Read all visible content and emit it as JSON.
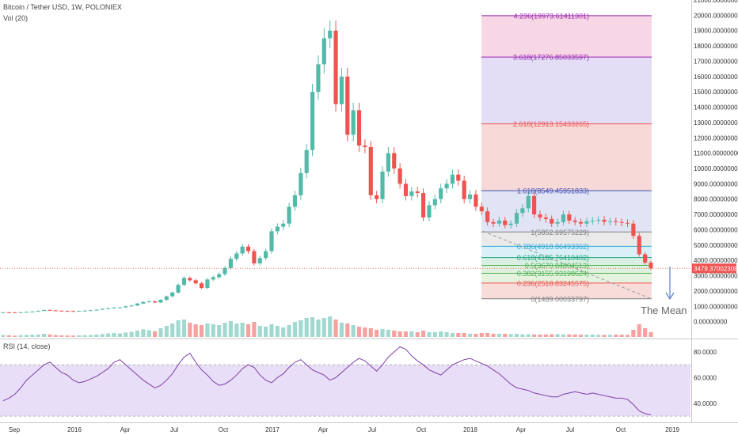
{
  "header": {
    "title": "Bitcoin / Tether USD, 1W, POLONIEX",
    "volume_label": "Vol (20)",
    "rsi_label": "RSI (14, close)"
  },
  "annotation": {
    "text": "The Mean"
  },
  "colors": {
    "up": "#53b9a9",
    "down": "#ef5350",
    "rsi_line": "#7b3fa8",
    "rsi_band": "#e9def7",
    "price_line": "#ef5350",
    "fib_line": "#5b7fbf"
  },
  "chart_data": [
    {
      "type": "candlestick",
      "title": "Bitcoin / Tether USD, 1W, POLONIEX",
      "y_axis_ticks": [
        "21000.00000000",
        "20000.00000000",
        "19000.00000000",
        "18000.00000000",
        "17000.00000000",
        "16000.00000000",
        "15000.00000000",
        "14000.00000000",
        "13000.00000000",
        "12000.00000000",
        "11000.00000000",
        "10000.00000000",
        "9000.00000000",
        "8000.00000000",
        "7000.00000000",
        "6000.00000000",
        "5000.00000000",
        "4000.00000000",
        "3000.00000000",
        "2000.00000000",
        "1000.00000000",
        "0.00000000"
      ],
      "ylim": [
        -1000,
        21000
      ],
      "x_axis_ticks": [
        "Sep",
        "2016",
        "Apr",
        "Jul",
        "Oct",
        "2017",
        "Apr",
        "Jul",
        "Oct",
        "2018",
        "Apr",
        "Jul",
        "Oct",
        "2019"
      ],
      "last_price": "3479.37002308",
      "closes": [
        610,
        605,
        600,
        615,
        640,
        660,
        700,
        760,
        730,
        710,
        700,
        690,
        680,
        700,
        720,
        740,
        780,
        830,
        880,
        920,
        930,
        1000,
        1050,
        1180,
        1280,
        1320,
        1250,
        1420,
        1650,
        1900,
        2400,
        2850,
        2700,
        2500,
        2200,
        2750,
        2900,
        3100,
        3500,
        4100,
        4450,
        4900,
        4600,
        3800,
        4150,
        4600,
        5900,
        6200,
        6400,
        7500,
        8250,
        9700,
        11200,
        15000,
        16800,
        18500,
        19000,
        14200,
        16000,
        12200,
        13800,
        11500,
        11400,
        8250,
        8000,
        9800,
        11000,
        10000,
        9000,
        8200,
        8500,
        8400,
        6800,
        7600,
        8000,
        8700,
        9000,
        9600,
        9200,
        8000,
        8300,
        7500,
        7200,
        6500,
        6400,
        6600,
        6300,
        6400,
        7100,
        7400,
        8200,
        7000,
        6800,
        6700,
        6400,
        6500,
        7000,
        6600,
        6500,
        6400,
        6550,
        6600,
        6650,
        6520,
        6560,
        6500,
        6450,
        6400,
        5600,
        4400,
        3850,
        3479
      ],
      "fib_levels": [
        {
          "label": "4.236(19973.61411301)",
          "price": 19973.61411301,
          "color": "#9c27b0",
          "fill": "#f6cfe2"
        },
        {
          "label": "3.618(17276.85033597)",
          "price": 17276.85033597,
          "color": "#9c27b0",
          "fill": "#ded7f5"
        },
        {
          "label": "2.618(12913.15433265)",
          "price": 12913.15433265,
          "color": "#ef5350",
          "fill": "#f6d3d0"
        },
        {
          "label": "1.618(8549.45951833)",
          "price": 8549.45951833,
          "color": "#3f51b5",
          "fill": "#dcdff3"
        },
        {
          "label": "1(5852.69575229)",
          "price": 5852.69575229,
          "color": "#808080",
          "fill": "#e6e6e6"
        },
        {
          "label": "0.786(4918.86493362)",
          "price": 4918.86493362,
          "color": "#26a6d6",
          "fill": "#d4ecf4"
        },
        {
          "label": "0.618(4185.76410402)",
          "price": 4185.76410402,
          "color": "#1aa37a",
          "fill": "#d2ecdf"
        },
        {
          "label": "0.5(3670.84804513)",
          "price": 3670.84804513,
          "color": "#4caf50",
          "fill": "#d8efd8"
        },
        {
          "label": "0.382(3155.93198624)",
          "price": 3155.93198624,
          "color": "#4caf50",
          "fill": "#dff0d8"
        },
        {
          "label": "0.236(2518.83245575)",
          "price": 2518.83245575,
          "color": "#ef5350",
          "fill": "#f6d6d4"
        },
        {
          "label": "0(1489.00033797)",
          "price": 1489.00033797,
          "color": "#808080",
          "fill": ""
        }
      ]
    },
    {
      "type": "bar",
      "title": "Vol (20)",
      "values": [
        1.2,
        1.0,
        0.8,
        1.1,
        1.3,
        1.4,
        1.5,
        2.0,
        1.6,
        1.2,
        1.0,
        0.9,
        0.9,
        1.0,
        1.1,
        1.2,
        1.5,
        1.8,
        2.2,
        2.5,
        2.2,
        2.8,
        3.2,
        4.0,
        4.8,
        4.2,
        3.6,
        5.5,
        7.0,
        8.5,
        10.5,
        11.0,
        9.0,
        8.0,
        7.5,
        8.5,
        8.0,
        7.5,
        9.0,
        10.0,
        8.5,
        9.0,
        8.0,
        9.5,
        7.0,
        6.5,
        8.0,
        7.0,
        6.0,
        7.5,
        9.5,
        10.5,
        12.0,
        12.5,
        11.0,
        12.0,
        13.0,
        11.0,
        9.0,
        8.5,
        7.5,
        6.5,
        6.0,
        5.5,
        4.5,
        5.0,
        4.5,
        4.0,
        3.5,
        3.5,
        3.5,
        3.0,
        4.0,
        3.0,
        3.0,
        3.5,
        3.0,
        2.5,
        2.5,
        2.5,
        2.0,
        2.0,
        2.5,
        2.5,
        2.0,
        2.0,
        2.0,
        1.8,
        2.0,
        1.6,
        1.7,
        1.6,
        1.5,
        1.6,
        1.7,
        1.8,
        1.5,
        1.6,
        1.5,
        1.4,
        1.5,
        1.5,
        1.4,
        1.3,
        1.4,
        1.5,
        1.4,
        1.3,
        4.5,
        8.0,
        5.5,
        3.0
      ]
    },
    {
      "type": "line",
      "title": "RSI (14, close)",
      "y_axis_ticks": [
        "80.0000",
        "60.0000",
        "40.0000"
      ],
      "ylim": [
        27,
        88
      ],
      "band": [
        30,
        70
      ],
      "values": [
        42,
        44,
        47,
        52,
        58,
        62,
        66,
        70,
        72,
        68,
        64,
        62,
        58,
        56,
        57,
        59,
        61,
        64,
        67,
        72,
        74,
        70,
        66,
        62,
        58,
        55,
        52,
        54,
        58,
        63,
        70,
        76,
        79,
        72,
        66,
        62,
        57,
        54,
        55,
        58,
        62,
        67,
        70,
        68,
        62,
        58,
        56,
        60,
        63,
        68,
        72,
        74,
        70,
        66,
        64,
        62,
        58,
        60,
        64,
        68,
        72,
        75,
        73,
        69,
        65,
        70,
        76,
        80,
        84,
        82,
        77,
        73,
        70,
        66,
        64,
        62,
        66,
        70,
        72,
        74,
        75,
        73,
        71,
        69,
        66,
        63,
        59,
        55,
        52,
        51,
        50,
        48,
        47,
        46,
        45,
        45,
        47,
        48,
        49,
        48,
        47,
        48,
        47,
        46,
        45,
        44,
        44,
        43,
        39,
        34,
        32,
        31
      ]
    }
  ]
}
